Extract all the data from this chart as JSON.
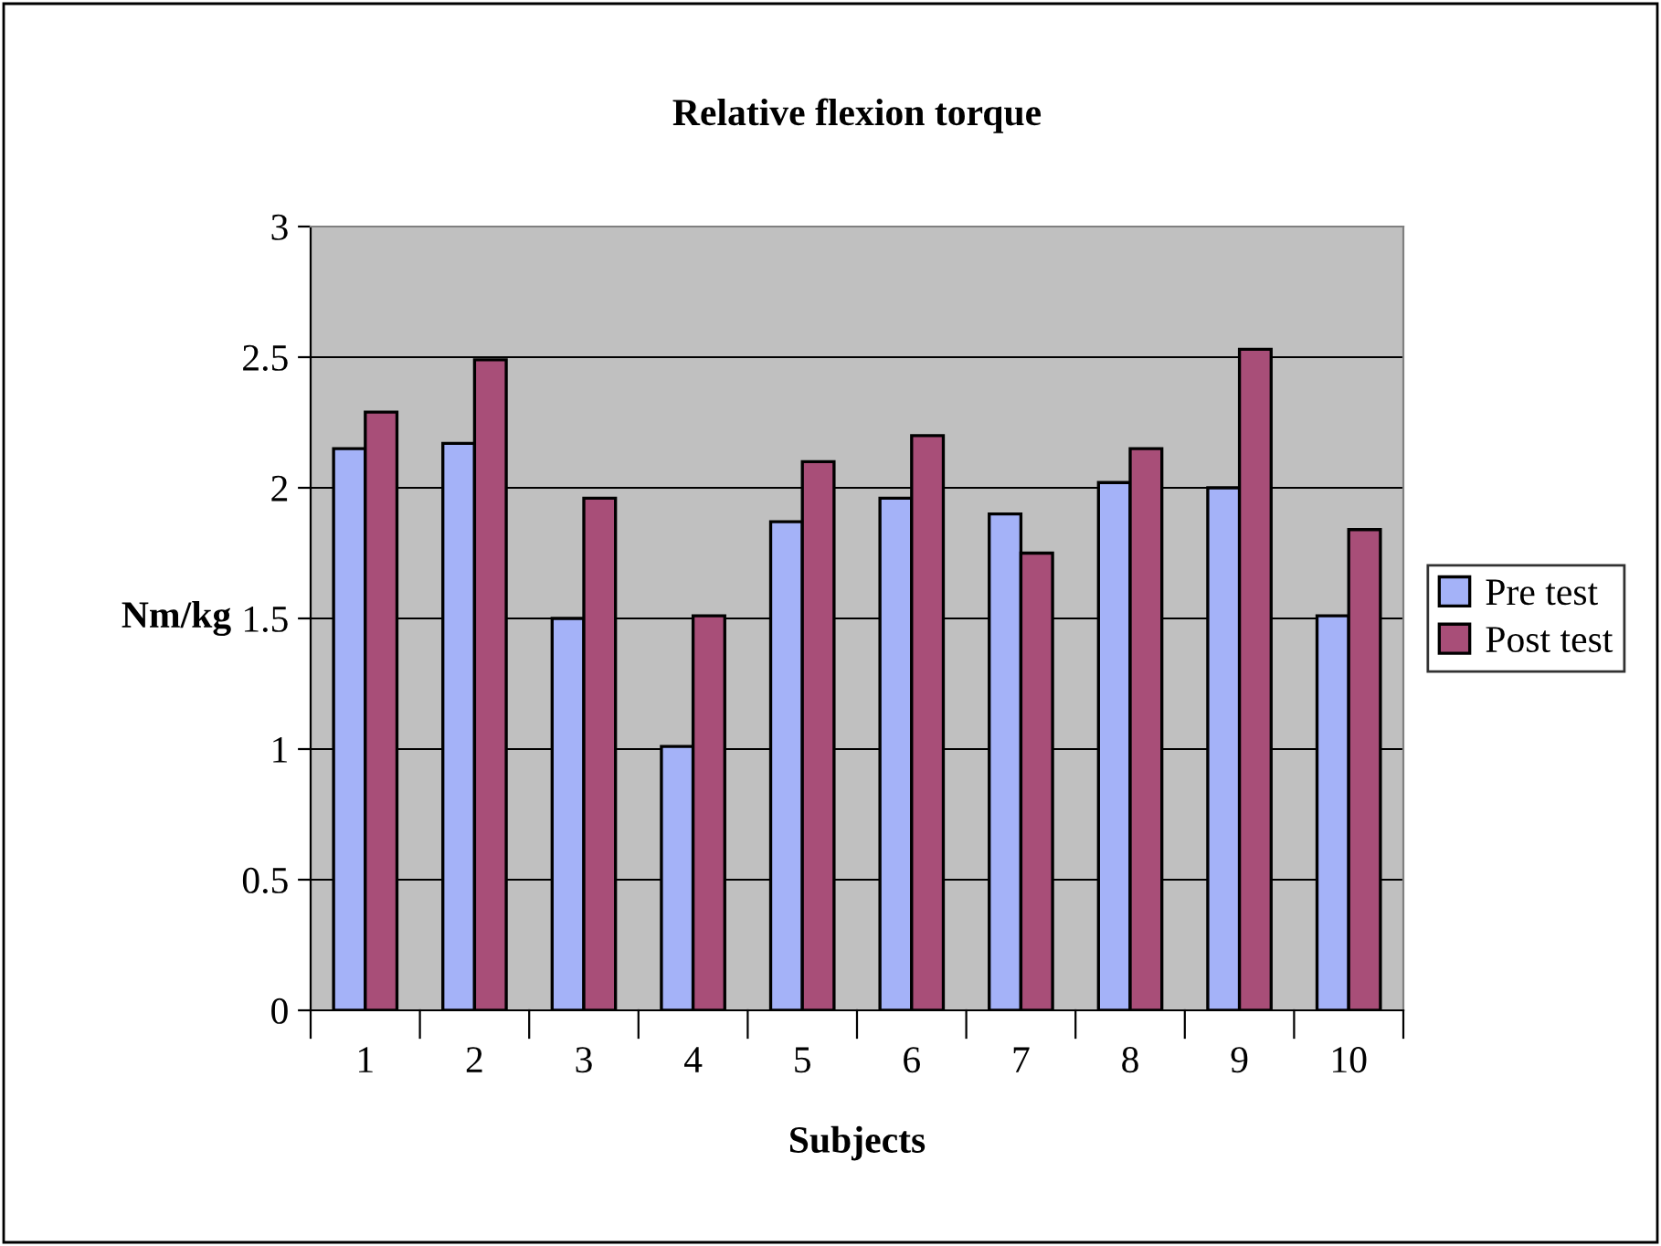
{
  "chart_data": {
    "type": "bar",
    "title": "Relative flexion torque",
    "xlabel": "Subjects",
    "ylabel": "Nm/kg",
    "categories": [
      "1",
      "2",
      "3",
      "4",
      "5",
      "6",
      "7",
      "8",
      "9",
      "10"
    ],
    "series": [
      {
        "name": "Pre test",
        "color": "#a4b2f8",
        "values": [
          2.15,
          2.17,
          1.5,
          1.01,
          1.87,
          1.96,
          1.9,
          2.02,
          2.0,
          1.51
        ]
      },
      {
        "name": "Post test",
        "color": "#a84e78",
        "values": [
          2.29,
          2.49,
          1.96,
          1.51,
          2.1,
          2.2,
          1.75,
          2.15,
          2.53,
          1.84
        ]
      }
    ],
    "ylim": [
      0,
      3
    ],
    "yticks": [
      0,
      0.5,
      1,
      1.5,
      2,
      2.5,
      3
    ],
    "grid": "y",
    "legend": "right"
  }
}
